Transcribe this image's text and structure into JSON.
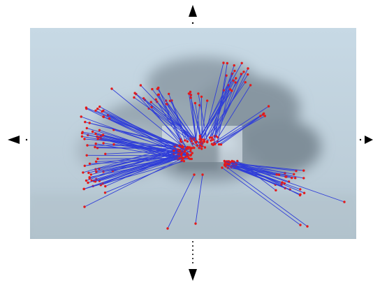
{
  "viewer": {
    "nav_icons": [
      "arrow-up-icon",
      "arrow-down-icon",
      "arrow-left-icon",
      "arrow-right-icon"
    ],
    "colors": {
      "background": "#ffffff",
      "sky_top": "#c9dbe6",
      "sky_bottom": "#b9cbd6",
      "cloud": "#8e9ba5",
      "highlight_box": "#e6f0f6",
      "ray": "#2f3dd8",
      "point": "#e31a1a",
      "arrow": "#000000"
    }
  }
}
